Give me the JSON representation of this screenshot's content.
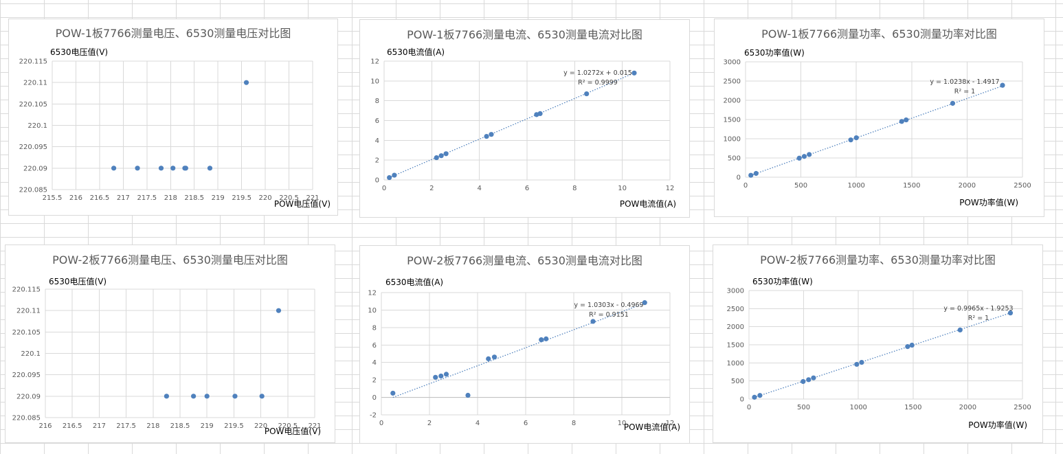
{
  "chart_data": [
    {
      "type": "scatter",
      "title": "POW-1板7766测量电压、6530测量电压对比图",
      "xlabel": "POW电压值(V)",
      "ylabel": "6530电压值(V)",
      "xlim": [
        215.5,
        221
      ],
      "xticks": [
        215.5,
        216,
        216.5,
        217,
        217.5,
        218,
        218.5,
        219,
        219.5,
        220,
        220.5,
        221
      ],
      "ylim": [
        220.085,
        220.115
      ],
      "yticks": [
        220.085,
        220.09,
        220.095,
        220.1,
        220.105,
        220.11,
        220.115
      ],
      "x": [
        216.8,
        217.3,
        217.8,
        218.05,
        218.3,
        218.32,
        218.83,
        219.6
      ],
      "y": [
        220.09,
        220.09,
        220.09,
        220.09,
        220.09,
        220.09,
        220.09,
        220.11
      ],
      "grid": true
    },
    {
      "type": "scatter",
      "title": "POW-1板7766测量电流、6530测量电流对比图",
      "xlabel": "POW电流值(A)",
      "ylabel": "6530电流值(A)",
      "xlim": [
        0,
        12
      ],
      "xticks": [
        0,
        2,
        4,
        6,
        8,
        10,
        12
      ],
      "ylim": [
        0,
        12
      ],
      "yticks": [
        0,
        2,
        4,
        6,
        8,
        10,
        12
      ],
      "x": [
        0.22,
        0.43,
        2.2,
        2.4,
        2.6,
        4.3,
        4.5,
        6.4,
        6.55,
        8.5,
        10.5
      ],
      "y": [
        0.24,
        0.48,
        2.25,
        2.45,
        2.65,
        4.4,
        4.6,
        6.6,
        6.7,
        8.7,
        10.8
      ],
      "trendline": {
        "slope": 1.0272,
        "intercept": 0.015,
        "x_range": [
          0.2,
          10.5
        ],
        "equation": "y = 1.0272x + 0.015",
        "r2": "R² = 0.9999"
      },
      "grid": true
    },
    {
      "type": "scatter",
      "title": "POW-1板7766测量功率、6530测量功率对比图",
      "xlabel": "POW功率值(W)",
      "ylabel": "6530功率值(W)",
      "xlim": [
        0,
        2500
      ],
      "xticks": [
        0,
        500,
        1000,
        1500,
        2000,
        2500
      ],
      "ylim": [
        0,
        3000
      ],
      "yticks": [
        0,
        500,
        1000,
        1500,
        2000,
        2500,
        3000
      ],
      "x": [
        48,
        95,
        485,
        530,
        575,
        950,
        1000,
        1410,
        1450,
        1870,
        2320
      ],
      "y": [
        50,
        98,
        495,
        540,
        590,
        970,
        1025,
        1450,
        1490,
        1920,
        2390
      ],
      "trendline": {
        "slope": 1.0238,
        "intercept": -1.4917,
        "x_range": [
          45,
          2320
        ],
        "equation": "y = 1.0238x - 1.4917",
        "r2": "R² = 1"
      },
      "grid": true
    },
    {
      "type": "scatter",
      "title": "POW-2板7766测量电压、6530测量电压对比图",
      "xlabel": "POW电压值(V)",
      "ylabel": "6530电压值(V)",
      "xlim": [
        216,
        221
      ],
      "xticks": [
        216,
        216.5,
        217,
        217.5,
        218,
        218.5,
        219,
        219.5,
        220,
        220.5,
        221
      ],
      "ylim": [
        220.085,
        220.115
      ],
      "yticks": [
        220.085,
        220.09,
        220.095,
        220.1,
        220.105,
        220.11,
        220.115
      ],
      "x": [
        218.25,
        218.75,
        219.0,
        219.52,
        220.02,
        220.33
      ],
      "y": [
        220.09,
        220.09,
        220.09,
        220.09,
        220.09,
        220.11
      ],
      "grid": true
    },
    {
      "type": "scatter",
      "title": "POW-2板7766测量电流、6530测量电流对比图",
      "xlabel": "POW电流值(A)",
      "ylabel": "6530电流值(A)",
      "xlim": [
        0,
        12
      ],
      "xticks": [
        0,
        2,
        4,
        6,
        8,
        10,
        12
      ],
      "ylim": [
        -2,
        12
      ],
      "yticks": [
        -2,
        0,
        2,
        4,
        6,
        8,
        10,
        12
      ],
      "x": [
        0.48,
        2.25,
        2.48,
        2.7,
        3.6,
        4.45,
        4.7,
        6.65,
        6.85,
        8.8,
        10.95
      ],
      "y": [
        0.48,
        2.3,
        2.45,
        2.65,
        0.24,
        4.42,
        4.62,
        6.6,
        6.7,
        8.7,
        10.85
      ],
      "trendline": {
        "slope": 1.0303,
        "intercept": -0.4969,
        "x_range": [
          0.48,
          10.95
        ],
        "equation": "y = 1.0303x - 0.4969",
        "r2": "R² = 0.9151"
      },
      "grid": true
    },
    {
      "type": "scatter",
      "title": "POW-2板7766测量功率、6530测量功率对比图",
      "xlabel": "POW功率值(W)",
      "ylabel": "6530功率值(W)",
      "xlim": [
        0,
        2500
      ],
      "xticks": [
        0,
        500,
        1000,
        1500,
        2000,
        2500
      ],
      "ylim": [
        0,
        3000
      ],
      "yticks": [
        0,
        500,
        1000,
        1500,
        2000,
        2500,
        3000
      ],
      "x": [
        50,
        100,
        495,
        545,
        590,
        985,
        1030,
        1450,
        1490,
        1930,
        2390
      ],
      "y": [
        50,
        100,
        485,
        535,
        585,
        960,
        1015,
        1450,
        1490,
        1910,
        2380
      ],
      "trendline": {
        "slope": 0.9965,
        "intercept": -1.9253,
        "x_range": [
          45,
          2390
        ],
        "equation": "y = 0.9965x - 1.9253",
        "r2": "R² = 1"
      },
      "grid": true
    }
  ]
}
